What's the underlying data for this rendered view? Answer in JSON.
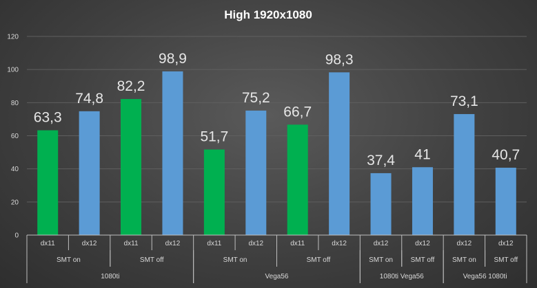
{
  "chart_data": {
    "type": "bar",
    "title": "High  1920x1080",
    "xlabel": "",
    "ylabel": "",
    "ylim": [
      0,
      120
    ],
    "yticks": [
      0,
      20,
      40,
      60,
      80,
      100,
      120
    ],
    "grid": true,
    "legend": "none",
    "colors": {
      "dx11": "#00b050",
      "dx12": "#5b9bd5"
    },
    "bars": [
      {
        "api": "dx11",
        "smt": "SMT on",
        "group": "1080ti",
        "value": 63.3,
        "label": "63,3"
      },
      {
        "api": "dx12",
        "smt": "SMT on",
        "group": "1080ti",
        "value": 74.8,
        "label": "74,8"
      },
      {
        "api": "dx11",
        "smt": "SMT off",
        "group": "1080ti",
        "value": 82.2,
        "label": "82,2"
      },
      {
        "api": "dx12",
        "smt": "SMT off",
        "group": "1080ti",
        "value": 98.9,
        "label": "98,9"
      },
      {
        "api": "dx11",
        "smt": "SMT on",
        "group": "Vega56",
        "value": 51.7,
        "label": "51,7"
      },
      {
        "api": "dx12",
        "smt": "SMT on",
        "group": "Vega56",
        "value": 75.2,
        "label": "75,2"
      },
      {
        "api": "dx11",
        "smt": "SMT off",
        "group": "Vega56",
        "value": 66.7,
        "label": "66,7"
      },
      {
        "api": "dx12",
        "smt": "SMT off",
        "group": "Vega56",
        "value": 98.3,
        "label": "98,3"
      },
      {
        "api": "dx12",
        "smt": "SMT on",
        "group": "1080ti Vega56",
        "value": 37.4,
        "label": "37,4"
      },
      {
        "api": "dx12",
        "smt": "SMT off",
        "group": "1080ti Vega56",
        "value": 41,
        "label": "41"
      },
      {
        "api": "dx12",
        "smt": "SMT on",
        "group": "Vega56 1080ti",
        "value": 73.1,
        "label": "73,1"
      },
      {
        "api": "dx12",
        "smt": "SMT off",
        "group": "Vega56 1080ti",
        "value": 40.7,
        "label": "40,7"
      }
    ],
    "smt_groups": [
      {
        "label": "SMT on",
        "start": 0,
        "count": 2
      },
      {
        "label": "SMT off",
        "start": 2,
        "count": 2
      },
      {
        "label": "SMT on",
        "start": 4,
        "count": 2
      },
      {
        "label": "SMT off",
        "start": 6,
        "count": 2
      },
      {
        "label": "SMT on",
        "start": 8,
        "count": 1
      },
      {
        "label": "SMT off",
        "start": 9,
        "count": 1
      },
      {
        "label": "SMT on",
        "start": 10,
        "count": 1
      },
      {
        "label": "SMT off",
        "start": 11,
        "count": 1
      }
    ],
    "gpu_groups": [
      {
        "label": "1080ti",
        "start": 0,
        "count": 4
      },
      {
        "label": "Vega56",
        "start": 4,
        "count": 4
      },
      {
        "label": "1080ti Vega56",
        "start": 8,
        "count": 2
      },
      {
        "label": "Vega56 1080ti",
        "start": 10,
        "count": 2
      }
    ]
  }
}
